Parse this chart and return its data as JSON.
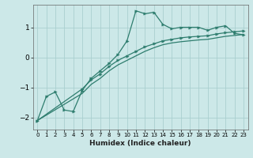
{
  "xlabel": "Humidex (Indice chaleur)",
  "ylabel": "",
  "bg_color": "#cce8e8",
  "line_color": "#2e7d6e",
  "grid_color": "#aacfcf",
  "xlim": [
    -0.5,
    23.5
  ],
  "ylim": [
    -2.4,
    1.75
  ],
  "yticks": [
    -2,
    -1,
    0,
    1
  ],
  "xticks": [
    0,
    1,
    2,
    3,
    4,
    5,
    6,
    7,
    8,
    9,
    10,
    11,
    12,
    13,
    14,
    15,
    16,
    17,
    18,
    19,
    20,
    21,
    22,
    23
  ],
  "lines": [
    {
      "x": [
        0,
        1,
        2,
        3,
        4,
        5,
        6,
        7,
        8,
        9,
        10,
        11,
        12,
        13,
        14,
        15,
        16,
        17,
        18,
        19,
        20,
        21,
        22,
        23
      ],
      "y": [
        -2.1,
        -1.3,
        -1.15,
        -1.75,
        -1.8,
        -1.1,
        -0.7,
        -0.45,
        -0.2,
        0.1,
        0.55,
        1.55,
        1.45,
        1.5,
        1.1,
        0.95,
        1.0,
        1.0,
        1.0,
        0.9,
        1.0,
        1.05,
        0.8,
        0.75
      ],
      "has_markers": true
    },
    {
      "x": [
        0,
        5,
        6,
        7,
        8,
        9,
        10,
        11,
        12,
        13,
        14,
        15,
        16,
        17,
        18,
        19,
        20,
        21,
        22,
        23
      ],
      "y": [
        -2.1,
        -1.05,
        -0.75,
        -0.55,
        -0.3,
        -0.1,
        0.05,
        0.2,
        0.35,
        0.45,
        0.55,
        0.6,
        0.65,
        0.68,
        0.7,
        0.72,
        0.78,
        0.82,
        0.85,
        0.88
      ],
      "has_markers": true
    },
    {
      "x": [
        0,
        5,
        6,
        7,
        8,
        9,
        10,
        11,
        12,
        13,
        14,
        15,
        16,
        17,
        18,
        19,
        20,
        21,
        22,
        23
      ],
      "y": [
        -2.1,
        -1.2,
        -0.9,
        -0.7,
        -0.45,
        -0.25,
        -0.1,
        0.05,
        0.2,
        0.32,
        0.42,
        0.48,
        0.52,
        0.55,
        0.58,
        0.6,
        0.65,
        0.7,
        0.73,
        0.76
      ],
      "has_markers": false
    }
  ]
}
